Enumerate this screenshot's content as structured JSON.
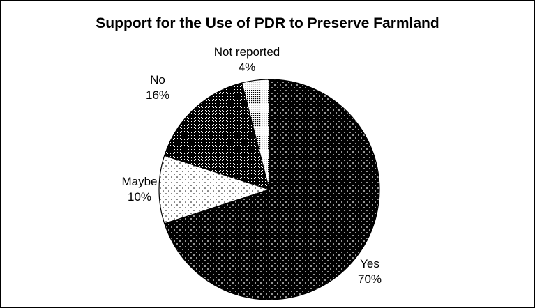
{
  "chart_data": {
    "type": "pie",
    "title": "Support for the Use of PDR to Preserve Farmland",
    "slices": [
      {
        "label": "Yes",
        "value": 70,
        "pct": "70%",
        "pattern": "dark-dots"
      },
      {
        "label": "Maybe",
        "value": 10,
        "pct": "10%",
        "pattern": "light-dots"
      },
      {
        "label": "No",
        "value": 16,
        "pct": "16%",
        "pattern": "crosshatch"
      },
      {
        "label": "Not reported",
        "value": 4,
        "pct": "4%",
        "pattern": "fine-dots"
      }
    ],
    "start_angle_deg": 0,
    "direction": "clockwise",
    "legend": "none"
  }
}
